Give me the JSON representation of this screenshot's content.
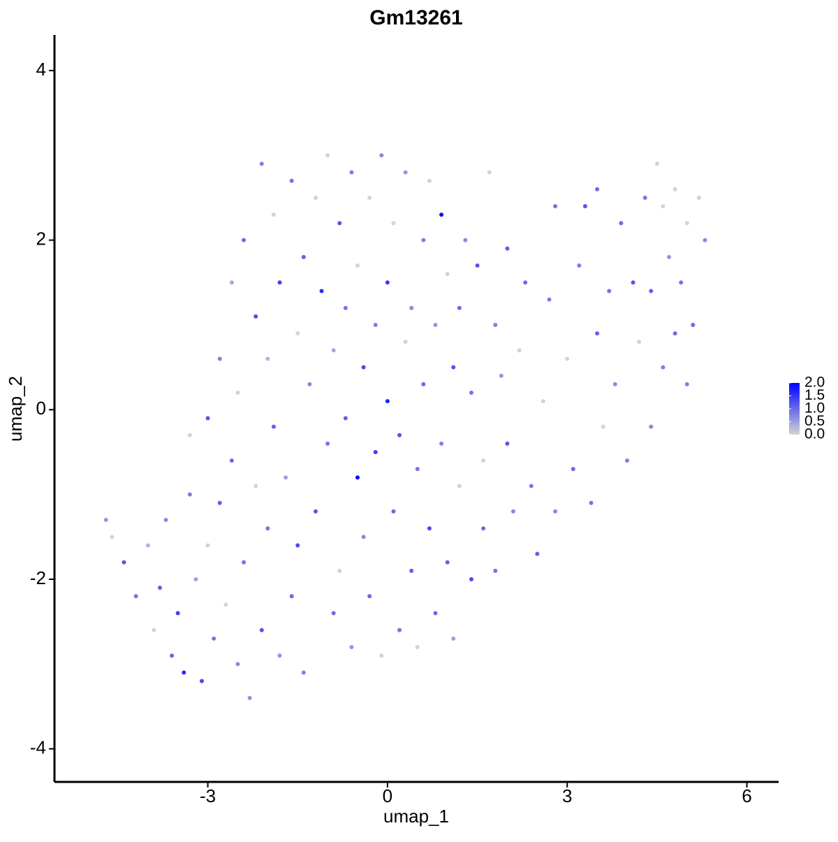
{
  "chart_data": {
    "type": "scatter",
    "title": "Gm13261",
    "x_label": "umap_1",
    "y_label": "umap_2",
    "xlim": [
      -5.56,
      6.53
    ],
    "ylim": [
      -4.39,
      4.42
    ],
    "xticks": [
      -3,
      0,
      3,
      6
    ],
    "yticks": [
      -4,
      -2,
      0,
      2,
      4
    ],
    "low_color": "#d3d3d3",
    "high_color": "#0000ff",
    "color_lim": [
      0,
      2
    ],
    "color_ticks": [
      {
        "value": 0,
        "label": "0.0"
      },
      {
        "value": 0.5,
        "label": "0.5"
      },
      {
        "value": 1,
        "label": "1.0"
      },
      {
        "value": 1.5,
        "label": "1.5"
      },
      {
        "value": 2,
        "label": "2.0"
      }
    ],
    "x": [
      -4.7,
      -4.6,
      -4.4,
      -4.2,
      -4.0,
      -3.9,
      -3.8,
      -3.7,
      -3.6,
      -3.5,
      -3.4,
      -3.3,
      -3.3,
      -3.2,
      -3.1,
      -3.0,
      -3.0,
      -2.9,
      -2.8,
      -2.8,
      -2.7,
      -2.6,
      -2.6,
      -2.5,
      -2.5,
      -2.4,
      -2.4,
      -2.3,
      -2.2,
      -2.2,
      -2.1,
      -2.1,
      -2.0,
      -2.0,
      -1.9,
      -1.9,
      -1.8,
      -1.8,
      -1.7,
      -1.6,
      -1.6,
      -1.5,
      -1.5,
      -1.4,
      -1.4,
      -1.3,
      -1.2,
      -1.2,
      -1.1,
      -1.0,
      -1.0,
      -0.9,
      -0.9,
      -0.8,
      -0.8,
      -0.7,
      -0.7,
      -0.6,
      -0.6,
      -0.5,
      -0.5,
      -0.4,
      -0.4,
      -0.3,
      -0.3,
      -0.2,
      -0.2,
      -0.1,
      -0.1,
      0.0,
      0.0,
      0.1,
      0.1,
      0.2,
      0.2,
      0.3,
      0.3,
      0.4,
      0.4,
      0.5,
      0.5,
      0.6,
      0.6,
      0.7,
      0.7,
      0.8,
      0.8,
      0.9,
      0.9,
      1.0,
      1.0,
      1.1,
      1.1,
      1.2,
      1.2,
      1.3,
      1.4,
      1.4,
      1.5,
      1.6,
      1.6,
      1.7,
      1.8,
      1.8,
      1.9,
      2.0,
      2.0,
      2.1,
      2.2,
      2.3,
      2.4,
      2.5,
      2.6,
      2.7,
      2.8,
      2.8,
      3.0,
      3.1,
      3.2,
      3.3,
      3.4,
      3.5,
      3.5,
      3.6,
      3.7,
      3.8,
      3.9,
      4.0,
      4.1,
      4.2,
      4.3,
      4.4,
      4.4,
      4.5,
      4.6,
      4.6,
      4.7,
      4.8,
      4.8,
      4.9,
      5.0,
      5.0,
      5.1,
      5.2,
      5.3
    ],
    "y": [
      -1.3,
      -1.5,
      -1.8,
      -2.2,
      -1.6,
      -2.6,
      -2.1,
      -1.3,
      -2.9,
      -2.4,
      -3.1,
      -1.0,
      -0.3,
      -2.0,
      -3.2,
      -0.1,
      -1.6,
      -2.7,
      0.6,
      -1.1,
      -2.3,
      1.5,
      -0.6,
      -3.0,
      0.2,
      2.0,
      -1.8,
      -3.4,
      1.1,
      -0.9,
      2.9,
      -2.6,
      0.6,
      -1.4,
      2.3,
      -0.2,
      1.5,
      -2.9,
      -0.8,
      2.7,
      -2.2,
      0.9,
      -1.6,
      1.8,
      -3.1,
      0.3,
      2.5,
      -1.2,
      1.4,
      -0.4,
      3.0,
      -2.4,
      0.7,
      2.2,
      -1.9,
      1.2,
      -0.1,
      2.8,
      -2.8,
      -0.8,
      1.7,
      0.5,
      -1.5,
      2.5,
      -2.2,
      1.0,
      -0.5,
      3.0,
      -2.9,
      0.1,
      1.5,
      -1.2,
      2.2,
      -0.3,
      -2.6,
      0.8,
      2.8,
      -1.9,
      1.2,
      -0.7,
      -2.8,
      2.0,
      0.3,
      -1.4,
      2.7,
      1.0,
      -2.4,
      2.3,
      -0.4,
      1.6,
      -1.8,
      0.5,
      -2.7,
      1.2,
      -0.9,
      2.0,
      -2.0,
      0.2,
      1.7,
      -0.6,
      -1.4,
      2.8,
      1.0,
      -1.9,
      0.4,
      -0.4,
      1.9,
      -1.2,
      0.7,
      1.5,
      -0.9,
      -1.7,
      0.1,
      1.3,
      -1.2,
      2.4,
      0.6,
      -0.7,
      1.7,
      2.4,
      -1.1,
      0.9,
      2.6,
      -0.2,
      1.4,
      0.3,
      2.2,
      -0.6,
      1.5,
      0.8,
      2.5,
      -0.2,
      1.4,
      2.9,
      0.5,
      2.4,
      1.8,
      0.9,
      2.6,
      1.5,
      2.2,
      0.3,
      1.0,
      2.5,
      2.0
    ],
    "color_values": [
      0.6,
      0,
      1.2,
      0.9,
      0.3,
      0,
      1.1,
      0.7,
      1.0,
      1.4,
      1.6,
      0.8,
      0,
      0.5,
      1.3,
      1.2,
      0,
      0.9,
      0.8,
      1.1,
      0,
      0.4,
      1.0,
      0.7,
      0,
      1.0,
      0.9,
      0.6,
      1.3,
      0,
      0.8,
      1.2,
      0.3,
      0.9,
      0,
      1.1,
      1.4,
      0.6,
      0.5,
      0.9,
      1.0,
      0,
      1.3,
      1.1,
      0.8,
      0.7,
      0,
      1.2,
      1.6,
      0.9,
      0,
      1.0,
      0.4,
      1.2,
      0,
      0.9,
      1.1,
      0.8,
      0.6,
      1.9,
      0,
      1.3,
      0.7,
      0,
      1.0,
      0.8,
      1.4,
      0.7,
      0,
      1.7,
      1.5,
      1.0,
      0,
      1.2,
      0.9,
      0,
      0.6,
      1.1,
      0.7,
      0.9,
      0,
      0.8,
      1.0,
      1.3,
      0,
      0.6,
      1.0,
      1.9,
      0.8,
      0,
      1.1,
      1.2,
      0.5,
      1.0,
      0,
      0.7,
      1.3,
      0.9,
      1.2,
      0,
      1.0,
      0,
      0.8,
      0.9,
      0.6,
      1.2,
      1.1,
      0.7,
      0,
      1.0,
      0.9,
      1.1,
      0,
      0.8,
      0.7,
      0.9,
      0,
      1.0,
      0.8,
      1.2,
      0.9,
      1.1,
      1.0,
      0,
      0.9,
      0.7,
      1.0,
      0.8,
      1.2,
      0,
      0.9,
      0.7,
      1.1,
      0,
      0.8,
      0,
      0.6,
      1.0,
      0,
      0.9,
      0,
      0.8,
      1.0,
      0,
      0.7
    ]
  }
}
